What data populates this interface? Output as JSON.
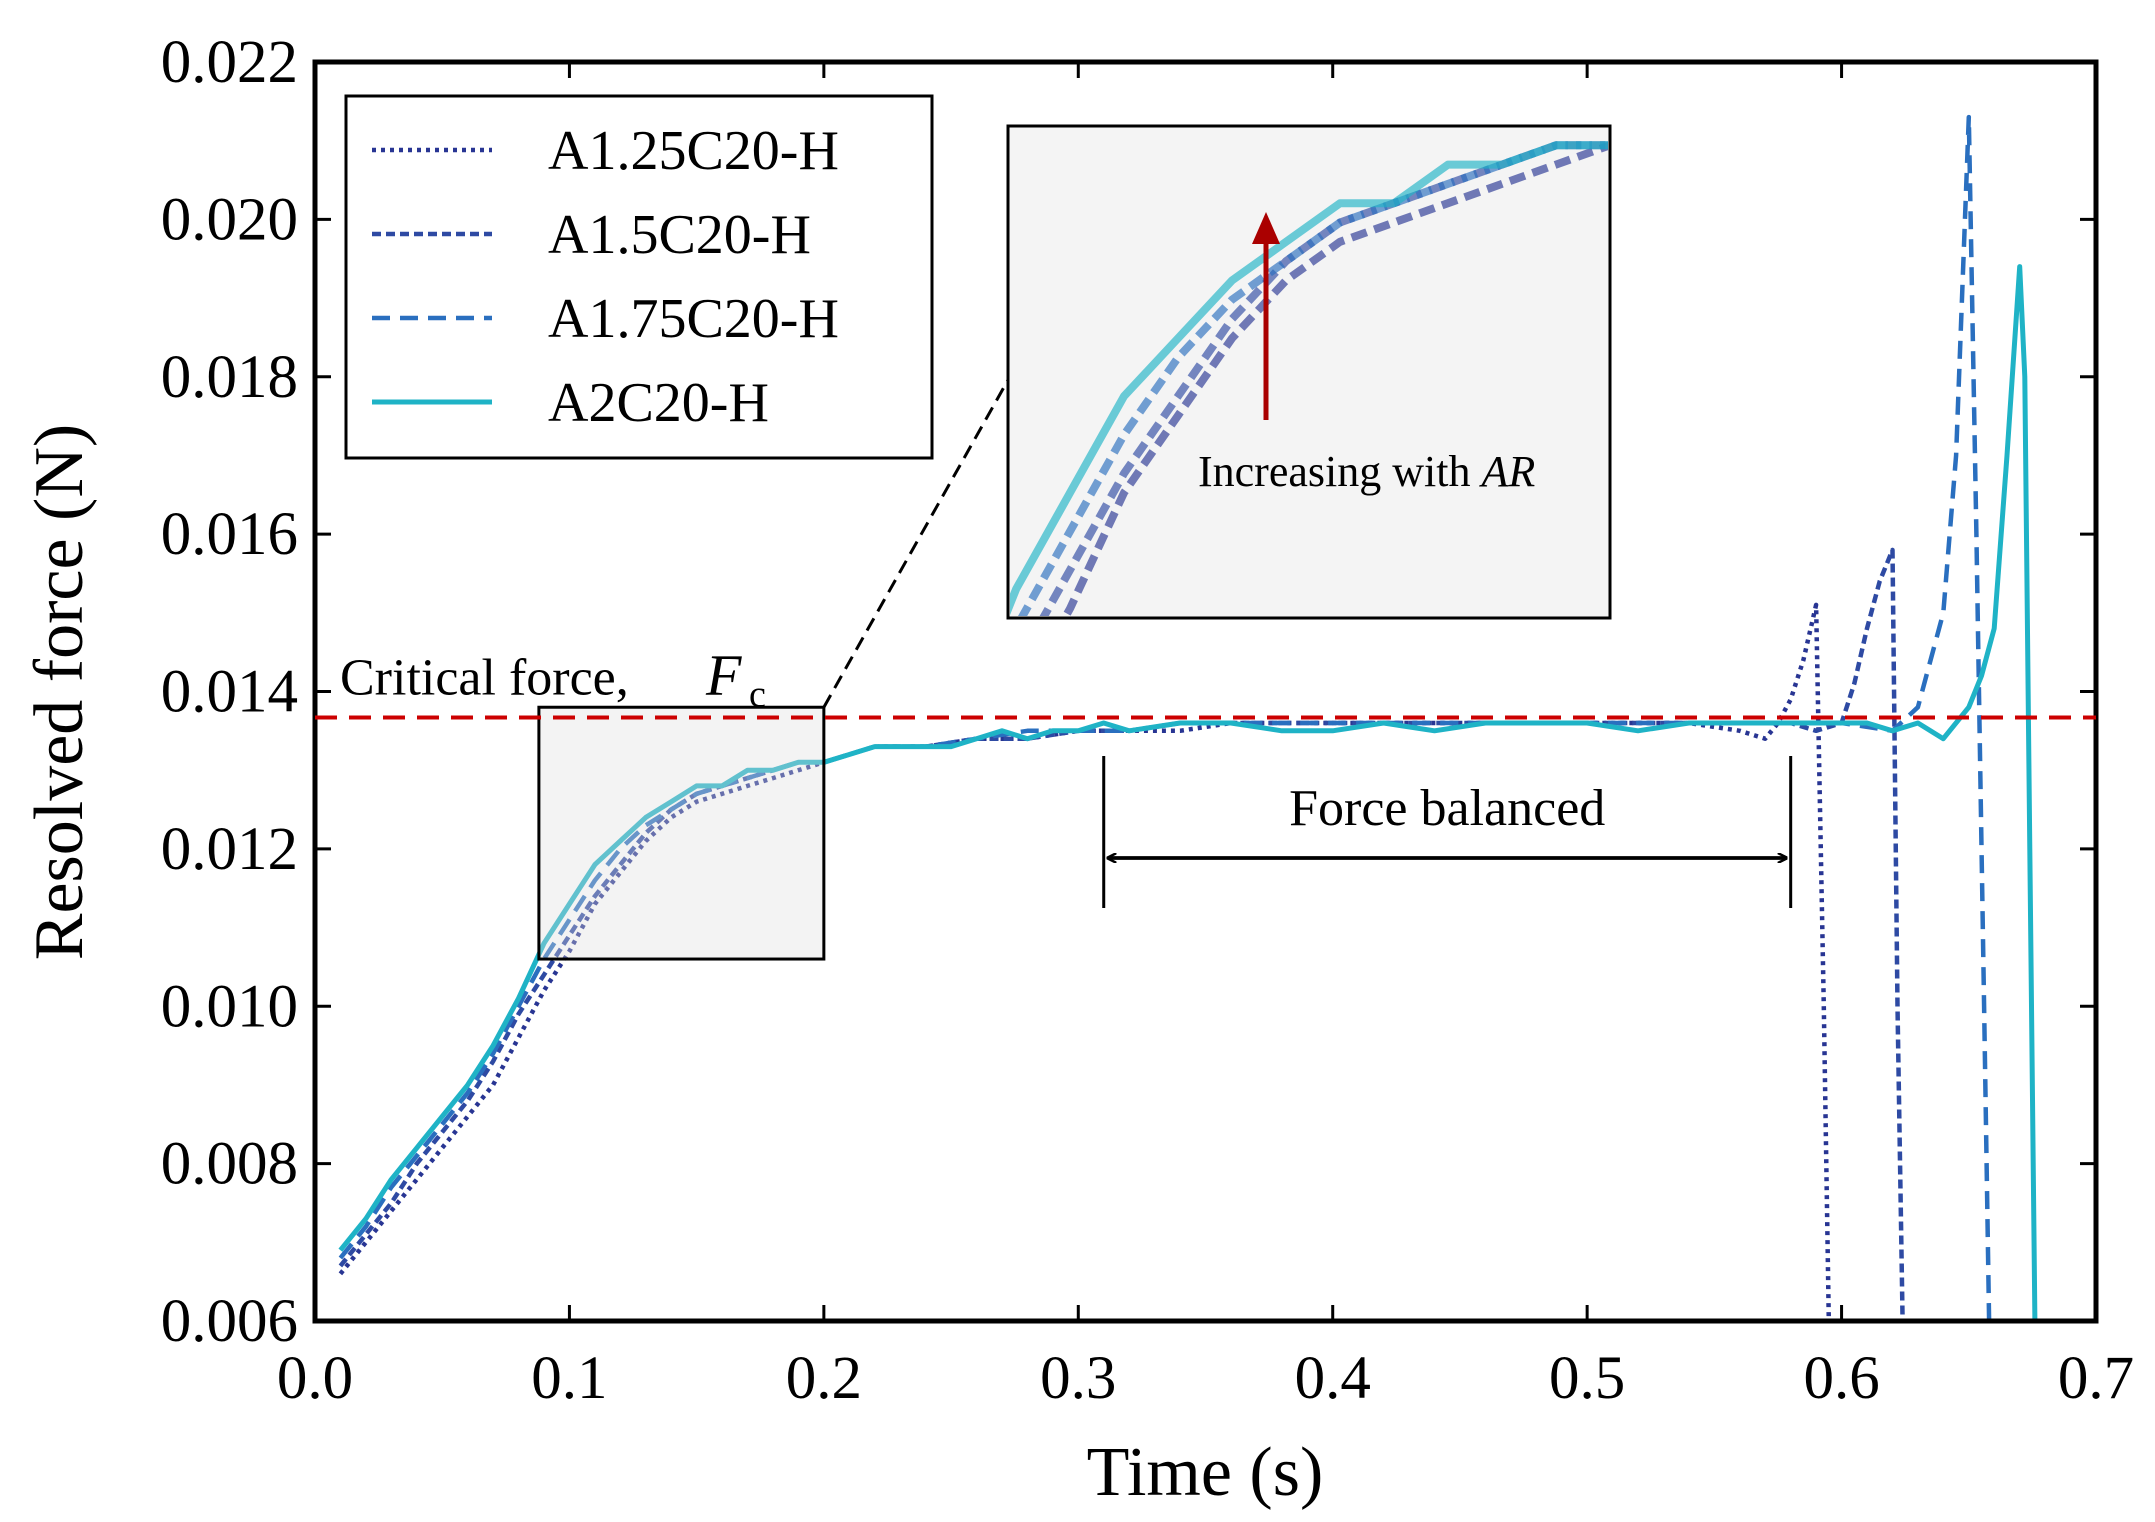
{
  "chart_data": {
    "type": "line",
    "title": "",
    "xlabel": "Time (s)",
    "ylabel": "Resolved force (N)",
    "xlim": [
      0.0,
      0.7
    ],
    "ylim": [
      0.006,
      0.022
    ],
    "x_ticks": [
      "0.0",
      "0.1",
      "0.2",
      "0.3",
      "0.4",
      "0.5",
      "0.6",
      "0.7"
    ],
    "y_ticks": [
      "0.006",
      "0.008",
      "0.010",
      "0.012",
      "0.014",
      "0.016",
      "0.018",
      "0.020",
      "0.022"
    ],
    "legend_position": "top-left",
    "series": [
      {
        "name": "A1.25C20-H",
        "style": "dotted",
        "color": "#283593",
        "points": [
          [
            0.01,
            0.0066
          ],
          [
            0.02,
            0.007
          ],
          [
            0.03,
            0.0074
          ],
          [
            0.04,
            0.0078
          ],
          [
            0.05,
            0.0082
          ],
          [
            0.06,
            0.0086
          ],
          [
            0.07,
            0.009
          ],
          [
            0.08,
            0.0096
          ],
          [
            0.09,
            0.0102
          ],
          [
            0.1,
            0.0107
          ],
          [
            0.11,
            0.0113
          ],
          [
            0.12,
            0.0117
          ],
          [
            0.13,
            0.0121
          ],
          [
            0.14,
            0.0124
          ],
          [
            0.15,
            0.0126
          ],
          [
            0.16,
            0.0127
          ],
          [
            0.17,
            0.0128
          ],
          [
            0.18,
            0.0129
          ],
          [
            0.19,
            0.013
          ],
          [
            0.2,
            0.0131
          ],
          [
            0.22,
            0.0133
          ],
          [
            0.24,
            0.0133
          ],
          [
            0.26,
            0.0134
          ],
          [
            0.28,
            0.0134
          ],
          [
            0.3,
            0.0135
          ],
          [
            0.32,
            0.0135
          ],
          [
            0.34,
            0.0135
          ],
          [
            0.36,
            0.0136
          ],
          [
            0.38,
            0.0136
          ],
          [
            0.4,
            0.0136
          ],
          [
            0.42,
            0.0136
          ],
          [
            0.44,
            0.0136
          ],
          [
            0.46,
            0.0136
          ],
          [
            0.48,
            0.0136
          ],
          [
            0.5,
            0.0136
          ],
          [
            0.52,
            0.0136
          ],
          [
            0.54,
            0.0136
          ],
          [
            0.56,
            0.0135
          ],
          [
            0.57,
            0.0134
          ],
          [
            0.575,
            0.0136
          ],
          [
            0.58,
            0.0139
          ],
          [
            0.585,
            0.0144
          ],
          [
            0.59,
            0.0151
          ],
          [
            0.593,
            0.01
          ],
          [
            0.595,
            0.006
          ]
        ]
      },
      {
        "name": "A1.5C20-H",
        "style": "densely-dashed",
        "color": "#2e4aa3",
        "points": [
          [
            0.01,
            0.0067
          ],
          [
            0.02,
            0.0071
          ],
          [
            0.03,
            0.0075
          ],
          [
            0.04,
            0.008
          ],
          [
            0.05,
            0.0084
          ],
          [
            0.06,
            0.0088
          ],
          [
            0.07,
            0.0093
          ],
          [
            0.08,
            0.0099
          ],
          [
            0.09,
            0.0104
          ],
          [
            0.1,
            0.0109
          ],
          [
            0.11,
            0.0114
          ],
          [
            0.12,
            0.0118
          ],
          [
            0.13,
            0.0122
          ],
          [
            0.14,
            0.0125
          ],
          [
            0.15,
            0.0127
          ],
          [
            0.16,
            0.0128
          ],
          [
            0.17,
            0.0129
          ],
          [
            0.18,
            0.013
          ],
          [
            0.19,
            0.0131
          ],
          [
            0.2,
            0.0131
          ],
          [
            0.22,
            0.0133
          ],
          [
            0.24,
            0.0133
          ],
          [
            0.26,
            0.0134
          ],
          [
            0.28,
            0.0134
          ],
          [
            0.3,
            0.0135
          ],
          [
            0.32,
            0.0135
          ],
          [
            0.34,
            0.0136
          ],
          [
            0.36,
            0.0136
          ],
          [
            0.38,
            0.0136
          ],
          [
            0.4,
            0.0136
          ],
          [
            0.42,
            0.0136
          ],
          [
            0.44,
            0.0136
          ],
          [
            0.46,
            0.0136
          ],
          [
            0.48,
            0.0136
          ],
          [
            0.5,
            0.0136
          ],
          [
            0.52,
            0.0136
          ],
          [
            0.54,
            0.0136
          ],
          [
            0.56,
            0.0136
          ],
          [
            0.58,
            0.0136
          ],
          [
            0.59,
            0.0135
          ],
          [
            0.6,
            0.0136
          ],
          [
            0.605,
            0.0141
          ],
          [
            0.61,
            0.0148
          ],
          [
            0.615,
            0.0154
          ],
          [
            0.62,
            0.0158
          ],
          [
            0.622,
            0.01
          ],
          [
            0.624,
            0.006
          ]
        ]
      },
      {
        "name": "A1.75C20-H",
        "style": "dashed",
        "color": "#2a6fbf",
        "points": [
          [
            0.01,
            0.0068
          ],
          [
            0.02,
            0.0072
          ],
          [
            0.03,
            0.0077
          ],
          [
            0.04,
            0.0081
          ],
          [
            0.05,
            0.0085
          ],
          [
            0.06,
            0.0089
          ],
          [
            0.07,
            0.0094
          ],
          [
            0.08,
            0.01
          ],
          [
            0.09,
            0.0106
          ],
          [
            0.1,
            0.0111
          ],
          [
            0.11,
            0.0116
          ],
          [
            0.12,
            0.012
          ],
          [
            0.13,
            0.0123
          ],
          [
            0.14,
            0.0125
          ],
          [
            0.15,
            0.0127
          ],
          [
            0.16,
            0.0128
          ],
          [
            0.17,
            0.0129
          ],
          [
            0.18,
            0.013
          ],
          [
            0.19,
            0.0131
          ],
          [
            0.2,
            0.0131
          ],
          [
            0.22,
            0.0133
          ],
          [
            0.24,
            0.0133
          ],
          [
            0.26,
            0.0134
          ],
          [
            0.28,
            0.0135
          ],
          [
            0.3,
            0.0135
          ],
          [
            0.32,
            0.0135
          ],
          [
            0.34,
            0.0136
          ],
          [
            0.36,
            0.0136
          ],
          [
            0.38,
            0.0136
          ],
          [
            0.4,
            0.0136
          ],
          [
            0.42,
            0.0136
          ],
          [
            0.44,
            0.0136
          ],
          [
            0.46,
            0.0136
          ],
          [
            0.48,
            0.0136
          ],
          [
            0.5,
            0.0136
          ],
          [
            0.52,
            0.0136
          ],
          [
            0.54,
            0.0136
          ],
          [
            0.56,
            0.0136
          ],
          [
            0.58,
            0.0136
          ],
          [
            0.6,
            0.0136
          ],
          [
            0.62,
            0.0135
          ],
          [
            0.63,
            0.0138
          ],
          [
            0.635,
            0.0144
          ],
          [
            0.64,
            0.015
          ],
          [
            0.645,
            0.017
          ],
          [
            0.65,
            0.0213
          ],
          [
            0.653,
            0.016
          ],
          [
            0.656,
            0.01
          ],
          [
            0.658,
            0.006
          ]
        ]
      },
      {
        "name": "A2C20-H",
        "style": "solid",
        "color": "#1fb3c6",
        "points": [
          [
            0.01,
            0.0069
          ],
          [
            0.02,
            0.0073
          ],
          [
            0.03,
            0.0078
          ],
          [
            0.04,
            0.0082
          ],
          [
            0.05,
            0.0086
          ],
          [
            0.06,
            0.009
          ],
          [
            0.07,
            0.0095
          ],
          [
            0.08,
            0.0101
          ],
          [
            0.09,
            0.0108
          ],
          [
            0.1,
            0.0113
          ],
          [
            0.11,
            0.0118
          ],
          [
            0.12,
            0.0121
          ],
          [
            0.13,
            0.0124
          ],
          [
            0.14,
            0.0126
          ],
          [
            0.15,
            0.0128
          ],
          [
            0.16,
            0.0128
          ],
          [
            0.17,
            0.013
          ],
          [
            0.18,
            0.013
          ],
          [
            0.19,
            0.0131
          ],
          [
            0.2,
            0.0131
          ],
          [
            0.21,
            0.0132
          ],
          [
            0.22,
            0.0133
          ],
          [
            0.23,
            0.0133
          ],
          [
            0.24,
            0.0133
          ],
          [
            0.25,
            0.0133
          ],
          [
            0.26,
            0.0134
          ],
          [
            0.27,
            0.0135
          ],
          [
            0.28,
            0.0134
          ],
          [
            0.29,
            0.0135
          ],
          [
            0.3,
            0.0135
          ],
          [
            0.31,
            0.0136
          ],
          [
            0.32,
            0.0135
          ],
          [
            0.34,
            0.0136
          ],
          [
            0.36,
            0.0136
          ],
          [
            0.38,
            0.0135
          ],
          [
            0.4,
            0.0135
          ],
          [
            0.42,
            0.0136
          ],
          [
            0.44,
            0.0135
          ],
          [
            0.46,
            0.0136
          ],
          [
            0.48,
            0.0136
          ],
          [
            0.5,
            0.0136
          ],
          [
            0.52,
            0.0135
          ],
          [
            0.54,
            0.0136
          ],
          [
            0.56,
            0.0136
          ],
          [
            0.58,
            0.0136
          ],
          [
            0.6,
            0.0136
          ],
          [
            0.61,
            0.0136
          ],
          [
            0.62,
            0.0135
          ],
          [
            0.63,
            0.0136
          ],
          [
            0.64,
            0.0134
          ],
          [
            0.65,
            0.0138
          ],
          [
            0.655,
            0.0142
          ],
          [
            0.66,
            0.0148
          ],
          [
            0.665,
            0.017
          ],
          [
            0.67,
            0.0194
          ],
          [
            0.672,
            0.018
          ],
          [
            0.674,
            0.012
          ],
          [
            0.676,
            0.006
          ]
        ]
      }
    ],
    "reference_line": {
      "value": 0.01367,
      "label": "Critical force, ",
      "symbol": "F",
      "subscript": "c",
      "color": "#cc0000"
    },
    "zoom_box": {
      "x_range": [
        0.088,
        0.2
      ],
      "y_range": [
        0.0106,
        0.0138
      ]
    },
    "balanced_bracket": {
      "x_range": [
        0.31,
        0.58
      ],
      "label": "Force balanced"
    },
    "inset": {
      "annotation_prefix": "Increasing with ",
      "annotation_italic": "AR",
      "arrow_color": "#aa0000"
    }
  }
}
